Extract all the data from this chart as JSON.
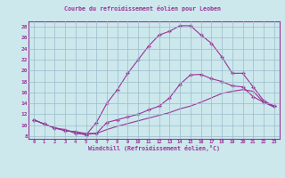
{
  "title": "Courbe du refroidissement éolien pour Leoben",
  "xlabel": "Windchill (Refroidissement éolien,°C)",
  "background_color": "#cce8ec",
  "line_color": "#993399",
  "grid_color": "#99bbcc",
  "xlim": [
    -0.5,
    23.5
  ],
  "ylim": [
    7.5,
    29.0
  ],
  "xticks": [
    0,
    1,
    2,
    3,
    4,
    5,
    6,
    7,
    8,
    9,
    10,
    11,
    12,
    13,
    14,
    15,
    16,
    17,
    18,
    19,
    20,
    21,
    22,
    23
  ],
  "yticks": [
    8,
    10,
    12,
    14,
    16,
    18,
    20,
    22,
    24,
    26,
    28
  ],
  "curve_upper_x": [
    0,
    1,
    2,
    3,
    4,
    5,
    6,
    7,
    8,
    9,
    10,
    11,
    12,
    13,
    14,
    15,
    16,
    17,
    18,
    19,
    20,
    21,
    22,
    23
  ],
  "curve_upper_y": [
    11.0,
    10.2,
    9.5,
    9.0,
    8.8,
    8.2,
    10.5,
    14.0,
    16.5,
    19.5,
    22.0,
    24.5,
    26.5,
    27.2,
    28.2,
    28.2,
    26.5,
    25.0,
    22.5,
    19.5,
    19.5,
    17.0,
    14.5,
    13.5
  ],
  "curve_mid_x": [
    0,
    1,
    2,
    3,
    4,
    5,
    6,
    7,
    8,
    9,
    10,
    11,
    12,
    13,
    14,
    15,
    16,
    17,
    18,
    19,
    20,
    21,
    22,
    23
  ],
  "curve_mid_y": [
    11.0,
    10.2,
    9.5,
    9.2,
    8.5,
    8.3,
    8.5,
    10.5,
    11.0,
    11.5,
    12.0,
    12.8,
    13.5,
    15.0,
    17.5,
    19.2,
    19.3,
    18.5,
    18.0,
    17.2,
    17.0,
    15.2,
    14.2,
    13.5
  ],
  "curve_lower_x": [
    0,
    1,
    2,
    3,
    4,
    5,
    6,
    7,
    8,
    9,
    10,
    11,
    12,
    13,
    14,
    15,
    16,
    17,
    18,
    19,
    20,
    21,
    22,
    23
  ],
  "curve_lower_y": [
    11.0,
    10.2,
    9.5,
    9.0,
    8.8,
    8.5,
    8.5,
    9.2,
    9.8,
    10.3,
    10.8,
    11.3,
    11.8,
    12.3,
    13.0,
    13.5,
    14.2,
    15.0,
    15.8,
    16.2,
    16.5,
    16.2,
    14.2,
    13.3
  ]
}
